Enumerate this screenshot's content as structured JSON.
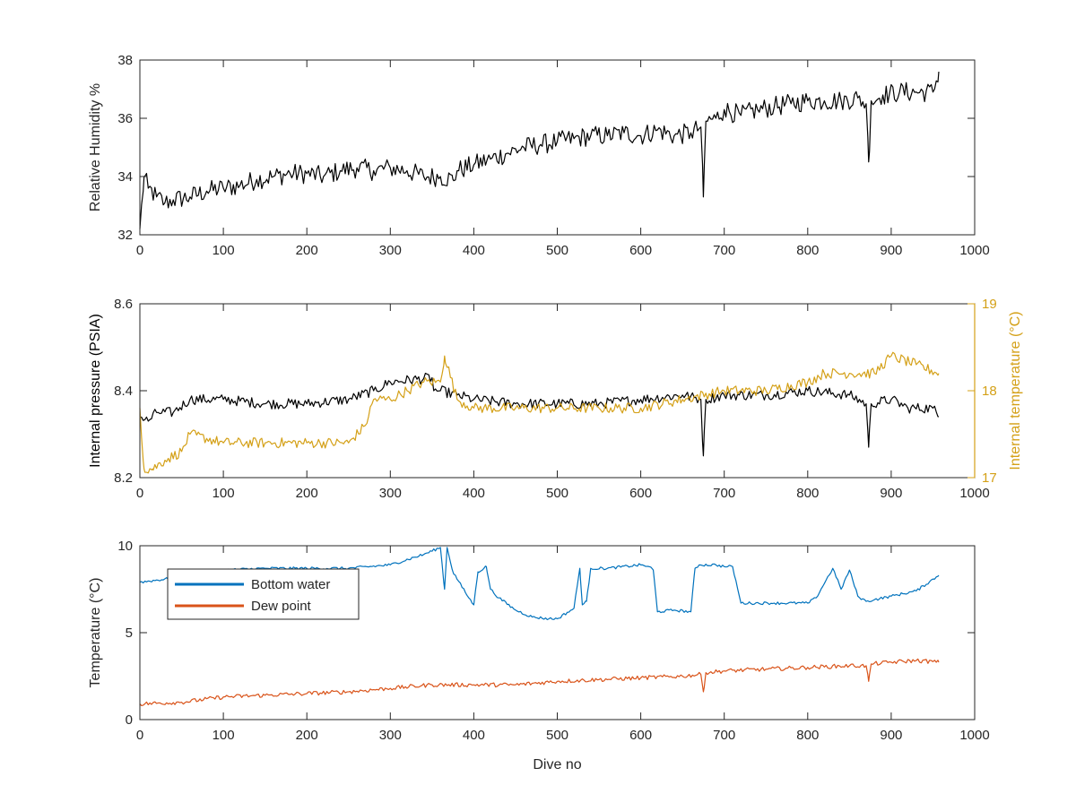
{
  "chart_data": [
    {
      "type": "line",
      "xlabel": "",
      "ylabel": "Relative Humidity %",
      "xlim": [
        0,
        1000
      ],
      "ylim": [
        32,
        38
      ],
      "xticks": [
        "0",
        "100",
        "200",
        "300",
        "400",
        "500",
        "600",
        "700",
        "800",
        "900",
        "1000"
      ],
      "yticks": [
        "32",
        "34",
        "36",
        "38"
      ],
      "grid": false,
      "series": [
        {
          "color": "#000000",
          "x": [
            0,
            5,
            10,
            20,
            30,
            40,
            60,
            80,
            100,
            120,
            140,
            160,
            180,
            200,
            220,
            240,
            260,
            280,
            300,
            320,
            340,
            360,
            375,
            380,
            400,
            420,
            440,
            460,
            480,
            500,
            520,
            540,
            560,
            580,
            600,
            620,
            640,
            660,
            672,
            675,
            678,
            690,
            700,
            720,
            740,
            760,
            780,
            800,
            820,
            840,
            860,
            870,
            873,
            876,
            890,
            910,
            930,
            950,
            957
          ],
          "y": [
            32.2,
            34.0,
            33.6,
            33.3,
            33.1,
            33.2,
            33.3,
            33.5,
            33.6,
            33.7,
            33.9,
            34.0,
            34.1,
            34.1,
            34.0,
            34.2,
            34.3,
            34.2,
            34.3,
            34.2,
            34.0,
            34.0,
            33.9,
            34.2,
            34.4,
            34.6,
            34.8,
            35.0,
            35.1,
            35.2,
            35.3,
            35.4,
            35.4,
            35.5,
            35.4,
            35.6,
            35.4,
            35.5,
            35.7,
            33.3,
            35.9,
            36.0,
            36.3,
            36.1,
            36.3,
            36.4,
            36.5,
            36.6,
            36.6,
            36.6,
            36.7,
            36.5,
            34.5,
            36.6,
            36.8,
            36.9,
            36.9,
            36.9,
            37.6
          ]
        }
      ]
    },
    {
      "type": "line",
      "xlabel": "",
      "ylabel": "Internal pressure (PSIA)",
      "y2label": "Internal temperature (°C)",
      "xlim": [
        0,
        1000
      ],
      "ylim": [
        8.2,
        8.6
      ],
      "y2lim": [
        17,
        19
      ],
      "xticks": [
        "0",
        "100",
        "200",
        "300",
        "400",
        "500",
        "600",
        "700",
        "800",
        "900",
        "1000"
      ],
      "yticks": [
        "8.2",
        "8.4",
        "8.6"
      ],
      "y2ticks": [
        "17",
        "18",
        "19"
      ],
      "grid": false,
      "series": [
        {
          "axis": "left",
          "color": "#000000",
          "x": [
            0,
            10,
            20,
            40,
            60,
            100,
            150,
            200,
            250,
            280,
            300,
            350,
            352,
            360,
            380,
            400,
            450,
            500,
            550,
            600,
            650,
            672,
            675,
            678,
            700,
            750,
            800,
            850,
            870,
            873,
            876,
            900,
            920,
            950,
            957
          ],
          "y": [
            8.34,
            8.33,
            8.35,
            8.35,
            8.38,
            8.38,
            8.37,
            8.37,
            8.38,
            8.4,
            8.42,
            8.43,
            8.4,
            8.4,
            8.39,
            8.38,
            8.37,
            8.37,
            8.37,
            8.38,
            8.39,
            8.38,
            8.25,
            8.38,
            8.39,
            8.39,
            8.4,
            8.39,
            8.37,
            8.27,
            8.37,
            8.38,
            8.36,
            8.36,
            8.34
          ]
        },
        {
          "axis": "right",
          "color": "#d4a017",
          "x": [
            0,
            5,
            15,
            30,
            50,
            60,
            100,
            150,
            200,
            250,
            270,
            280,
            300,
            320,
            340,
            360,
            365,
            380,
            400,
            450,
            500,
            550,
            600,
            650,
            700,
            750,
            800,
            820,
            850,
            880,
            900,
            930,
            957
          ],
          "y": [
            17.8,
            17.1,
            17.1,
            17.2,
            17.3,
            17.5,
            17.4,
            17.4,
            17.4,
            17.4,
            17.6,
            17.9,
            17.9,
            18.0,
            18.1,
            18.1,
            18.4,
            17.9,
            17.8,
            17.8,
            17.8,
            17.8,
            17.8,
            17.9,
            18.0,
            18.0,
            18.1,
            18.2,
            18.2,
            18.2,
            18.4,
            18.3,
            18.2
          ]
        }
      ]
    },
    {
      "type": "line",
      "xlabel": "Dive no",
      "ylabel": "Temperature (°C)",
      "xlim": [
        0,
        1000
      ],
      "ylim": [
        0,
        10
      ],
      "xticks": [
        "0",
        "100",
        "200",
        "300",
        "400",
        "500",
        "600",
        "700",
        "800",
        "900",
        "1000"
      ],
      "yticks": [
        "0",
        "5",
        "10"
      ],
      "grid": false,
      "legend": "top-left",
      "series": [
        {
          "name": "Bottom water",
          "color": "#0072bd",
          "x": [
            0,
            50,
            100,
            150,
            200,
            250,
            300,
            340,
            360,
            365,
            368,
            375,
            390,
            400,
            405,
            415,
            420,
            430,
            450,
            470,
            490,
            500,
            520,
            527,
            530,
            535,
            540,
            560,
            600,
            610,
            615,
            620,
            640,
            660,
            665,
            670,
            690,
            700,
            710,
            720,
            760,
            800,
            810,
            830,
            840,
            850,
            860,
            870,
            880,
            900,
            930,
            957
          ],
          "y": [
            7.9,
            8.2,
            8.6,
            8.7,
            8.7,
            8.7,
            8.9,
            9.5,
            9.9,
            7.5,
            9.9,
            8.5,
            7.3,
            6.6,
            8.5,
            8.8,
            7.5,
            7.0,
            6.3,
            5.9,
            5.8,
            5.8,
            6.4,
            8.7,
            6.6,
            6.8,
            8.7,
            8.7,
            8.9,
            8.8,
            8.6,
            6.2,
            6.3,
            6.2,
            8.7,
            8.9,
            8.9,
            8.8,
            8.8,
            6.7,
            6.7,
            6.7,
            7.0,
            8.7,
            7.5,
            8.6,
            7.1,
            6.8,
            6.9,
            7.1,
            7.4,
            8.3
          ]
        },
        {
          "name": "Dew point",
          "color": "#d95319",
          "x": [
            0,
            50,
            100,
            150,
            200,
            250,
            300,
            350,
            400,
            450,
            500,
            550,
            600,
            650,
            672,
            675,
            678,
            700,
            750,
            800,
            850,
            870,
            873,
            876,
            900,
            930,
            957
          ],
          "y": [
            0.9,
            1.0,
            1.3,
            1.4,
            1.5,
            1.6,
            1.8,
            2.0,
            2.0,
            2.0,
            2.2,
            2.3,
            2.4,
            2.5,
            2.6,
            1.6,
            2.7,
            2.8,
            2.9,
            3.0,
            3.1,
            3.1,
            2.2,
            3.2,
            3.3,
            3.4,
            3.3
          ]
        }
      ]
    }
  ]
}
